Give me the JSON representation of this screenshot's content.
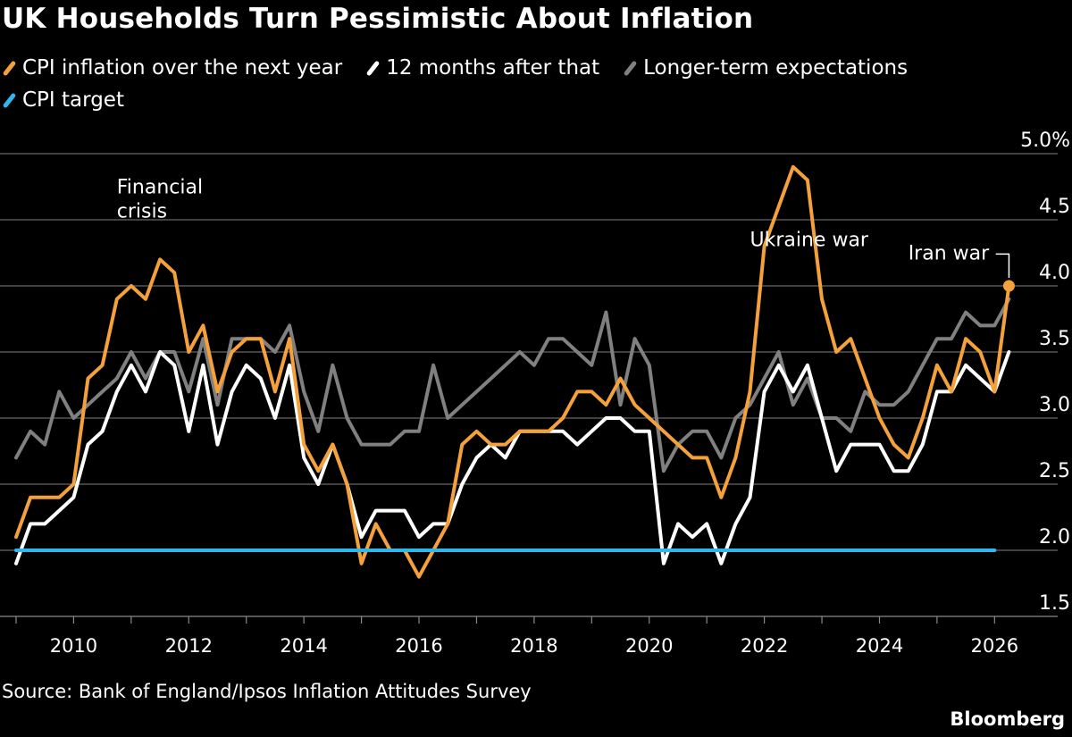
{
  "chart_data": {
    "type": "line",
    "title": "UK Households Turn Pessimistic About Inflation",
    "source": "Source: Bank of England/Ipsos Inflation Attitudes Survey",
    "brand": "Bloomberg",
    "ylim": [
      1.5,
      5.0
    ],
    "yticks": [
      "1.5",
      "2.0",
      "2.5",
      "3.0",
      "3.5",
      "4.0",
      "4.5",
      "5.0%"
    ],
    "yticks_values": [
      1.5,
      2.0,
      2.5,
      3.0,
      3.5,
      4.0,
      4.5,
      5.0
    ],
    "xlim": [
      2009.0,
      2026.6
    ],
    "xticks": [
      "2010",
      "2012",
      "2014",
      "2016",
      "2018",
      "2020",
      "2022",
      "2024",
      "2026"
    ],
    "xticks_values": [
      2010,
      2012,
      2014,
      2016,
      2018,
      2020,
      2022,
      2024,
      2026
    ],
    "grid": "horizontal",
    "legend_position": "top-left",
    "series": [
      {
        "name": "Longer-term expectations",
        "color": "#808080",
        "points": [
          [
            2009.0,
            2.7
          ],
          [
            2009.25,
            2.9
          ],
          [
            2009.5,
            2.8
          ],
          [
            2009.75,
            3.2
          ],
          [
            2010.0,
            3.0
          ],
          [
            2010.25,
            3.1
          ],
          [
            2010.5,
            3.2
          ],
          [
            2010.75,
            3.3
          ],
          [
            2011.0,
            3.5
          ],
          [
            2011.25,
            3.3
          ],
          [
            2011.5,
            3.5
          ],
          [
            2011.75,
            3.5
          ],
          [
            2012.0,
            3.2
          ],
          [
            2012.25,
            3.6
          ],
          [
            2012.5,
            3.1
          ],
          [
            2012.75,
            3.6
          ],
          [
            2013.0,
            3.6
          ],
          [
            2013.25,
            3.6
          ],
          [
            2013.5,
            3.5
          ],
          [
            2013.75,
            3.7
          ],
          [
            2014.0,
            3.2
          ],
          [
            2014.25,
            2.9
          ],
          [
            2014.5,
            3.4
          ],
          [
            2014.75,
            3.0
          ],
          [
            2015.0,
            2.8
          ],
          [
            2015.25,
            2.8
          ],
          [
            2015.5,
            2.8
          ],
          [
            2015.75,
            2.9
          ],
          [
            2016.0,
            2.9
          ],
          [
            2016.25,
            3.4
          ],
          [
            2016.5,
            3.0
          ],
          [
            2016.75,
            3.1
          ],
          [
            2017.0,
            3.2
          ],
          [
            2017.25,
            3.3
          ],
          [
            2017.5,
            3.4
          ],
          [
            2017.75,
            3.5
          ],
          [
            2018.0,
            3.4
          ],
          [
            2018.25,
            3.6
          ],
          [
            2018.5,
            3.6
          ],
          [
            2018.75,
            3.5
          ],
          [
            2019.0,
            3.4
          ],
          [
            2019.25,
            3.8
          ],
          [
            2019.5,
            3.1
          ],
          [
            2019.75,
            3.6
          ],
          [
            2020.0,
            3.4
          ],
          [
            2020.25,
            2.6
          ],
          [
            2020.5,
            2.8
          ],
          [
            2020.75,
            2.9
          ],
          [
            2021.0,
            2.9
          ],
          [
            2021.25,
            2.7
          ],
          [
            2021.5,
            3.0
          ],
          [
            2021.75,
            3.1
          ],
          [
            2022.0,
            3.3
          ],
          [
            2022.25,
            3.5
          ],
          [
            2022.5,
            3.1
          ],
          [
            2022.75,
            3.3
          ],
          [
            2023.0,
            3.0
          ],
          [
            2023.25,
            3.0
          ],
          [
            2023.5,
            2.9
          ],
          [
            2023.75,
            3.2
          ],
          [
            2024.0,
            3.1
          ],
          [
            2024.25,
            3.1
          ],
          [
            2024.5,
            3.2
          ],
          [
            2024.75,
            3.4
          ],
          [
            2025.0,
            3.6
          ],
          [
            2025.25,
            3.6
          ],
          [
            2025.5,
            3.8
          ],
          [
            2025.75,
            3.7
          ],
          [
            2026.0,
            3.7
          ],
          [
            2026.25,
            3.9
          ]
        ]
      },
      {
        "name": "12 months after that",
        "color": "#ffffff",
        "points": [
          [
            2009.0,
            1.9
          ],
          [
            2009.25,
            2.2
          ],
          [
            2009.5,
            2.2
          ],
          [
            2009.75,
            2.3
          ],
          [
            2010.0,
            2.4
          ],
          [
            2010.25,
            2.8
          ],
          [
            2010.5,
            2.9
          ],
          [
            2010.75,
            3.2
          ],
          [
            2011.0,
            3.4
          ],
          [
            2011.25,
            3.2
          ],
          [
            2011.5,
            3.5
          ],
          [
            2011.75,
            3.4
          ],
          [
            2012.0,
            2.9
          ],
          [
            2012.25,
            3.4
          ],
          [
            2012.5,
            2.8
          ],
          [
            2012.75,
            3.2
          ],
          [
            2013.0,
            3.4
          ],
          [
            2013.25,
            3.3
          ],
          [
            2013.5,
            3.0
          ],
          [
            2013.75,
            3.4
          ],
          [
            2014.0,
            2.7
          ],
          [
            2014.25,
            2.5
          ],
          [
            2014.5,
            2.8
          ],
          [
            2014.75,
            2.5
          ],
          [
            2015.0,
            2.1
          ],
          [
            2015.25,
            2.3
          ],
          [
            2015.5,
            2.3
          ],
          [
            2015.75,
            2.3
          ],
          [
            2016.0,
            2.1
          ],
          [
            2016.25,
            2.2
          ],
          [
            2016.5,
            2.2
          ],
          [
            2016.75,
            2.5
          ],
          [
            2017.0,
            2.7
          ],
          [
            2017.25,
            2.8
          ],
          [
            2017.5,
            2.7
          ],
          [
            2017.75,
            2.9
          ],
          [
            2018.0,
            2.9
          ],
          [
            2018.25,
            2.9
          ],
          [
            2018.5,
            2.9
          ],
          [
            2018.75,
            2.8
          ],
          [
            2019.0,
            2.9
          ],
          [
            2019.25,
            3.0
          ],
          [
            2019.5,
            3.0
          ],
          [
            2019.75,
            2.9
          ],
          [
            2020.0,
            2.9
          ],
          [
            2020.25,
            1.9
          ],
          [
            2020.5,
            2.2
          ],
          [
            2020.75,
            2.1
          ],
          [
            2021.0,
            2.2
          ],
          [
            2021.25,
            1.9
          ],
          [
            2021.5,
            2.2
          ],
          [
            2021.75,
            2.4
          ],
          [
            2022.0,
            3.2
          ],
          [
            2022.25,
            3.4
          ],
          [
            2022.5,
            3.2
          ],
          [
            2022.75,
            3.4
          ],
          [
            2023.0,
            3.0
          ],
          [
            2023.25,
            2.6
          ],
          [
            2023.5,
            2.8
          ],
          [
            2023.75,
            2.8
          ],
          [
            2024.0,
            2.8
          ],
          [
            2024.25,
            2.6
          ],
          [
            2024.5,
            2.6
          ],
          [
            2024.75,
            2.8
          ],
          [
            2025.0,
            3.2
          ],
          [
            2025.25,
            3.2
          ],
          [
            2025.5,
            3.4
          ],
          [
            2025.75,
            3.3
          ],
          [
            2026.0,
            3.2
          ],
          [
            2026.25,
            3.5
          ]
        ]
      },
      {
        "name": "CPI inflation over the next year",
        "color": "#f4a13b",
        "points": [
          [
            2009.0,
            2.1
          ],
          [
            2009.25,
            2.4
          ],
          [
            2009.5,
            2.4
          ],
          [
            2009.75,
            2.4
          ],
          [
            2010.0,
            2.5
          ],
          [
            2010.25,
            3.3
          ],
          [
            2010.5,
            3.4
          ],
          [
            2010.75,
            3.9
          ],
          [
            2011.0,
            4.0
          ],
          [
            2011.25,
            3.9
          ],
          [
            2011.5,
            4.2
          ],
          [
            2011.75,
            4.1
          ],
          [
            2012.0,
            3.5
          ],
          [
            2012.25,
            3.7
          ],
          [
            2012.5,
            3.2
          ],
          [
            2012.75,
            3.5
          ],
          [
            2013.0,
            3.6
          ],
          [
            2013.25,
            3.6
          ],
          [
            2013.5,
            3.2
          ],
          [
            2013.75,
            3.6
          ],
          [
            2014.0,
            2.8
          ],
          [
            2014.25,
            2.6
          ],
          [
            2014.5,
            2.8
          ],
          [
            2014.75,
            2.5
          ],
          [
            2015.0,
            1.9
          ],
          [
            2015.25,
            2.2
          ],
          [
            2015.5,
            2.0
          ],
          [
            2015.75,
            2.0
          ],
          [
            2016.0,
            1.8
          ],
          [
            2016.25,
            2.0
          ],
          [
            2016.5,
            2.2
          ],
          [
            2016.75,
            2.8
          ],
          [
            2017.0,
            2.9
          ],
          [
            2017.25,
            2.8
          ],
          [
            2017.5,
            2.8
          ],
          [
            2017.75,
            2.9
          ],
          [
            2018.0,
            2.9
          ],
          [
            2018.25,
            2.9
          ],
          [
            2018.5,
            3.0
          ],
          [
            2018.75,
            3.2
          ],
          [
            2019.0,
            3.2
          ],
          [
            2019.25,
            3.1
          ],
          [
            2019.5,
            3.3
          ],
          [
            2019.75,
            3.1
          ],
          [
            2020.0,
            3.0
          ],
          [
            2020.25,
            2.9
          ],
          [
            2020.5,
            2.8
          ],
          [
            2020.75,
            2.7
          ],
          [
            2021.0,
            2.7
          ],
          [
            2021.25,
            2.4
          ],
          [
            2021.5,
            2.7
          ],
          [
            2021.75,
            3.2
          ],
          [
            2022.0,
            4.3
          ],
          [
            2022.25,
            4.6
          ],
          [
            2022.5,
            4.9
          ],
          [
            2022.75,
            4.8
          ],
          [
            2023.0,
            3.9
          ],
          [
            2023.25,
            3.5
          ],
          [
            2023.5,
            3.6
          ],
          [
            2023.75,
            3.3
          ],
          [
            2024.0,
            3.0
          ],
          [
            2024.25,
            2.8
          ],
          [
            2024.5,
            2.7
          ],
          [
            2024.75,
            3.0
          ],
          [
            2025.0,
            3.4
          ],
          [
            2025.25,
            3.2
          ],
          [
            2025.5,
            3.6
          ],
          [
            2025.75,
            3.5
          ],
          [
            2026.0,
            3.2
          ],
          [
            2026.25,
            4.0
          ]
        ]
      },
      {
        "name": "CPI target",
        "color": "#2eb8ec",
        "points": [
          [
            2009.0,
            2.0
          ],
          [
            2026.0,
            2.0
          ]
        ]
      }
    ],
    "legend_order": [
      2,
      1,
      0,
      3
    ],
    "annotations": [
      {
        "text_lines": [
          "Financial",
          "crisis"
        ],
        "x": 2010.75,
        "y": 4.7
      },
      {
        "text_lines": [
          "Ukraine war"
        ],
        "x": 2021.75,
        "y": 4.3
      },
      {
        "text_lines": [
          "Iran war"
        ],
        "x": 2024.5,
        "y": 4.2,
        "marker_x": 2026.25,
        "marker_y": 4.0
      }
    ]
  }
}
